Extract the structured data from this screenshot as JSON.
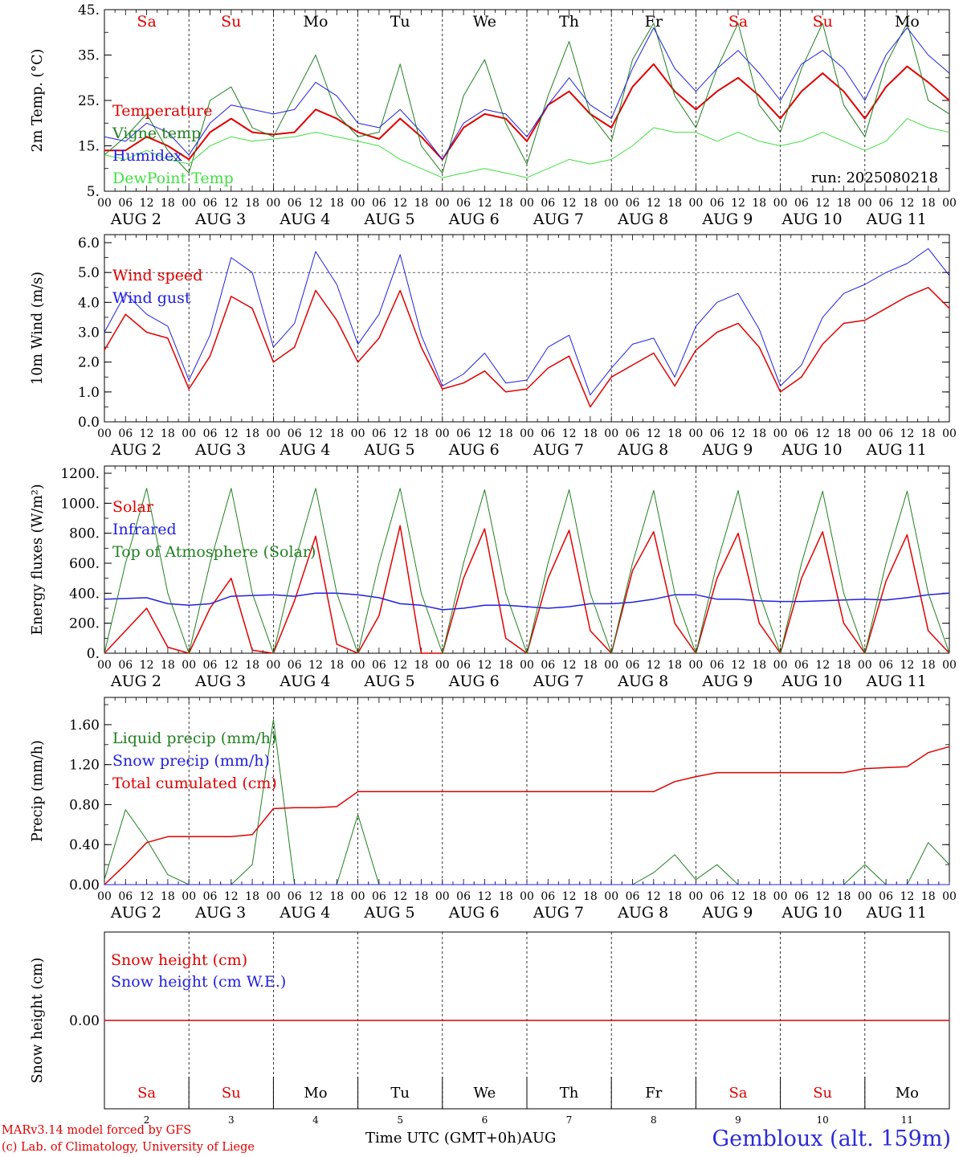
{
  "chart_data": [
    {
      "type": "line",
      "id": "temp",
      "ylabel": "2m Temp. (°C)",
      "ylim": [
        5,
        45
      ],
      "yticks": [
        "45.",
        "35.",
        "25.",
        "15.",
        "5."
      ],
      "ytick_values": [
        45,
        35,
        25,
        15,
        5
      ],
      "hlines": [],
      "day_labels": [
        "Sa",
        "Su",
        "Mo",
        "Tu",
        "We",
        "Th",
        "Fr",
        "Sa",
        "Su",
        "Mo"
      ],
      "day_label_colors": [
        "#e00000",
        "#e00000",
        "#000000",
        "#000000",
        "#000000",
        "#000000",
        "#000000",
        "#e00000",
        "#e00000",
        "#000000"
      ],
      "annotation": "run: 2025080218",
      "x_hours": [
        0,
        6,
        12,
        18,
        24,
        30,
        36,
        42,
        48,
        54,
        60,
        66,
        72,
        78,
        84,
        90,
        96,
        102,
        108,
        114,
        120,
        126,
        132,
        138,
        144,
        150,
        156,
        162,
        168,
        174,
        180,
        186,
        192,
        198,
        204,
        210,
        216,
        222,
        228,
        234,
        240
      ],
      "series": [
        {
          "name": "Temperature",
          "color": "#e00000",
          "width": 2,
          "values": [
            14,
            14,
            17,
            15,
            12,
            18,
            21,
            18,
            17.5,
            18,
            23,
            21,
            18,
            16.5,
            21,
            17,
            12,
            19,
            22,
            21,
            16,
            24,
            27,
            22,
            19,
            28,
            33,
            27,
            23,
            27,
            30,
            26,
            21,
            27,
            31,
            27,
            21,
            28,
            32.5,
            29,
            25
          ]
        },
        {
          "name": "Vigne temp",
          "color": "#208020",
          "width": 1,
          "values": [
            13,
            17,
            22,
            14,
            9,
            25,
            28,
            19,
            17,
            26,
            35,
            22,
            17,
            18,
            33,
            15,
            9,
            26,
            34,
            20,
            11,
            26,
            38,
            22,
            16,
            34,
            42,
            26,
            19,
            32,
            42,
            24,
            18,
            32,
            42,
            24,
            17,
            33,
            42,
            25,
            22
          ]
        },
        {
          "name": "Humidex",
          "color": "#2020e0",
          "width": 1,
          "values": [
            17,
            16,
            20,
            18,
            13,
            20,
            24,
            23,
            22,
            23,
            29,
            26,
            20,
            19,
            23,
            18,
            12,
            20,
            23,
            22,
            17,
            24,
            30,
            24,
            21,
            32,
            41,
            32,
            27,
            32,
            36,
            31,
            25,
            33,
            36,
            32,
            25,
            35,
            41,
            35,
            31
          ]
        },
        {
          "name": "DewPoint Temp",
          "color": "#40e040",
          "width": 1,
          "values": [
            13,
            12,
            14,
            12,
            11,
            15,
            17,
            16,
            16.5,
            17,
            18,
            17,
            16,
            15,
            12,
            10,
            8,
            9,
            10,
            9,
            8,
            10,
            12,
            11,
            12,
            15,
            19,
            18,
            18,
            16,
            18,
            16,
            15,
            16,
            18,
            16,
            14,
            16,
            21,
            19,
            18
          ]
        }
      ]
    },
    {
      "type": "line",
      "id": "wind",
      "ylabel": "10m Wind (m/s)",
      "ylim": [
        0,
        6
      ],
      "yticks": [
        "6.0",
        "5.0",
        "4.0",
        "3.0",
        "2.0",
        "1.0",
        "0.0"
      ],
      "ytick_values": [
        6,
        5,
        4,
        3,
        2,
        1,
        0
      ],
      "hlines": [
        5
      ],
      "x_hours": [
        0,
        6,
        12,
        18,
        24,
        30,
        36,
        42,
        48,
        54,
        60,
        66,
        72,
        78,
        84,
        90,
        96,
        102,
        108,
        114,
        120,
        126,
        132,
        138,
        144,
        150,
        156,
        162,
        168,
        174,
        180,
        186,
        192,
        198,
        204,
        210,
        216,
        222,
        228,
        234,
        240
      ],
      "series": [
        {
          "name": "Wind speed",
          "color": "#e00000",
          "width": 1.5,
          "values": [
            2.4,
            3.6,
            3.0,
            2.8,
            1.1,
            2.2,
            4.2,
            3.8,
            2.0,
            2.5,
            4.4,
            3.4,
            2.0,
            2.8,
            4.4,
            2.5,
            1.1,
            1.3,
            1.7,
            1.0,
            1.1,
            1.8,
            2.2,
            0.5,
            1.5,
            1.9,
            2.3,
            1.2,
            2.4,
            3.0,
            3.3,
            2.5,
            1.0,
            1.5,
            2.6,
            3.3,
            3.4,
            3.8,
            4.2,
            4.5,
            3.8
          ]
        },
        {
          "name": "Wind gust",
          "color": "#2020e0",
          "width": 1,
          "values": [
            3.0,
            4.3,
            3.6,
            3.2,
            1.4,
            2.9,
            5.5,
            5.0,
            2.5,
            3.3,
            5.7,
            4.6,
            2.6,
            3.6,
            5.6,
            2.9,
            1.2,
            1.6,
            2.3,
            1.3,
            1.4,
            2.5,
            2.9,
            0.9,
            1.8,
            2.6,
            2.8,
            1.5,
            3.2,
            4.0,
            4.3,
            3.1,
            1.2,
            1.9,
            3.5,
            4.3,
            4.6,
            5.0,
            5.3,
            5.8,
            4.9
          ]
        }
      ]
    },
    {
      "type": "line",
      "id": "energy",
      "ylabel": "Energy fluxes (W/m²)",
      "ylim": [
        0,
        1200
      ],
      "yticks": [
        "1200.",
        "1000.",
        "800.",
        "600.",
        "400.",
        "200.",
        "0."
      ],
      "ytick_values": [
        1200,
        1000,
        800,
        600,
        400,
        200,
        0
      ],
      "hlines": [],
      "x_hours": [
        0,
        6,
        12,
        18,
        24,
        30,
        36,
        42,
        48,
        54,
        60,
        66,
        72,
        78,
        84,
        90,
        96,
        102,
        108,
        114,
        120,
        126,
        132,
        138,
        144,
        150,
        156,
        162,
        168,
        174,
        180,
        186,
        192,
        198,
        204,
        210,
        216,
        222,
        228,
        234,
        240
      ],
      "series": [
        {
          "name": "Solar",
          "color": "#e00000",
          "width": 1.5,
          "values": [
            0,
            150,
            300,
            40,
            0,
            300,
            500,
            20,
            0,
            350,
            780,
            60,
            0,
            250,
            850,
            0,
            0,
            500,
            830,
            100,
            0,
            500,
            820,
            150,
            0,
            550,
            810,
            200,
            0,
            500,
            800,
            200,
            0,
            500,
            810,
            200,
            0,
            480,
            790,
            150,
            0
          ]
        },
        {
          "name": "Infrared",
          "color": "#2020e0",
          "width": 1.5,
          "values": [
            360,
            365,
            370,
            330,
            320,
            330,
            380,
            385,
            390,
            380,
            400,
            400,
            390,
            370,
            330,
            320,
            290,
            300,
            320,
            320,
            310,
            300,
            310,
            330,
            330,
            340,
            360,
            390,
            390,
            360,
            360,
            350,
            345,
            345,
            350,
            355,
            360,
            355,
            370,
            390,
            400
          ]
        },
        {
          "name": "Top of Atmosphere (Solar)",
          "color": "#208020",
          "width": 1,
          "values": [
            0,
            600,
            1100,
            400,
            0,
            600,
            1100,
            400,
            0,
            600,
            1100,
            400,
            0,
            600,
            1100,
            400,
            0,
            600,
            1090,
            400,
            0,
            600,
            1090,
            400,
            0,
            600,
            1085,
            400,
            0,
            600,
            1085,
            400,
            0,
            600,
            1080,
            400,
            0,
            600,
            1080,
            400,
            0
          ]
        }
      ]
    },
    {
      "type": "line",
      "id": "precip",
      "ylabel": "Precip (mm/h)",
      "ylim": [
        0,
        1.8
      ],
      "yticks": [
        "1.60",
        "1.20",
        "0.80",
        "0.40",
        "0.00"
      ],
      "ytick_values": [
        1.6,
        1.2,
        0.8,
        0.4,
        0
      ],
      "hlines": [],
      "x_hours": [
        0,
        6,
        12,
        18,
        24,
        30,
        36,
        42,
        48,
        54,
        60,
        66,
        72,
        78,
        84,
        90,
        96,
        102,
        108,
        114,
        120,
        126,
        132,
        138,
        144,
        150,
        156,
        162,
        168,
        174,
        180,
        186,
        192,
        198,
        204,
        210,
        216,
        222,
        228,
        234,
        240
      ],
      "series": [
        {
          "name": "Liquid precip (mm/h)",
          "color": "#208020",
          "width": 1,
          "values": [
            0.05,
            0.75,
            0.45,
            0.1,
            0,
            0,
            0,
            0.2,
            1.65,
            0,
            0,
            0,
            0.7,
            0,
            0,
            0,
            0,
            0,
            0,
            0,
            0,
            0,
            0,
            0,
            0,
            0,
            0.12,
            0.3,
            0.05,
            0.2,
            0,
            0,
            0,
            0,
            0,
            0,
            0.2,
            0,
            0,
            0.42,
            0.2
          ]
        },
        {
          "name": "Snow precip (mm/h)",
          "color": "#2020e0",
          "width": 1,
          "values": [
            0,
            0,
            0,
            0,
            0,
            0,
            0,
            0,
            0,
            0,
            0,
            0,
            0,
            0,
            0,
            0,
            0,
            0,
            0,
            0,
            0,
            0,
            0,
            0,
            0,
            0,
            0,
            0,
            0,
            0,
            0,
            0,
            0,
            0,
            0,
            0,
            0,
            0,
            0,
            0,
            0
          ]
        },
        {
          "name": "Total cumulated (cm)",
          "color": "#e00000",
          "width": 1.5,
          "values": [
            0,
            0.2,
            0.42,
            0.48,
            0.48,
            0.48,
            0.48,
            0.5,
            0.76,
            0.77,
            0.77,
            0.78,
            0.93,
            0.93,
            0.93,
            0.93,
            0.93,
            0.93,
            0.93,
            0.93,
            0.93,
            0.93,
            0.93,
            0.93,
            0.93,
            0.93,
            0.93,
            1.03,
            1.08,
            1.12,
            1.12,
            1.12,
            1.12,
            1.12,
            1.12,
            1.12,
            1.16,
            1.17,
            1.18,
            1.32,
            1.38
          ]
        }
      ]
    },
    {
      "type": "line",
      "id": "snow",
      "ylabel": "Snow height (cm)",
      "ylim": [
        -1,
        1
      ],
      "yticks": [
        "0.00"
      ],
      "ytick_values": [
        0
      ],
      "hlines": [],
      "x_hours": [
        0,
        240
      ],
      "series": [
        {
          "name": "Snow height (cm)",
          "color": "#e00000",
          "width": 1.5,
          "values": [
            0,
            0
          ]
        },
        {
          "name": "Snow height (cm W.E.)",
          "color": "#2020e0",
          "width": 1,
          "values": []
        }
      ]
    }
  ],
  "x_axis": {
    "hour_ticks": [
      "00",
      "06",
      "12",
      "18"
    ],
    "final_tick": "00",
    "day_labels": [
      "AUG  2",
      "AUG  3",
      "AUG  4",
      "AUG  5",
      "AUG  6",
      "AUG  7",
      "AUG  8",
      "AUG  9",
      "AUG 10",
      "AUG 11"
    ],
    "bottom_day_names": [
      "Sa",
      "Su",
      "Mo",
      "Tu",
      "We",
      "Th",
      "Fr",
      "Sa",
      "Su",
      "Mo"
    ],
    "bottom_day_colors": [
      "#e00000",
      "#e00000",
      "#000000",
      "#000000",
      "#000000",
      "#000000",
      "#000000",
      "#e00000",
      "#e00000",
      "#000000"
    ],
    "bottom_day_numbers": [
      "2",
      "3",
      "4",
      "5",
      "6",
      "7",
      "8",
      "9",
      "10",
      "11"
    ]
  },
  "footer": {
    "model_line": "MARv3.14 model forced by GFS",
    "credit_line": "(c) Lab. of Climatology, University of Liege",
    "axis_title": "Time UTC (GMT+0h)AUG",
    "station": "Gembloux (alt. 159m)"
  }
}
